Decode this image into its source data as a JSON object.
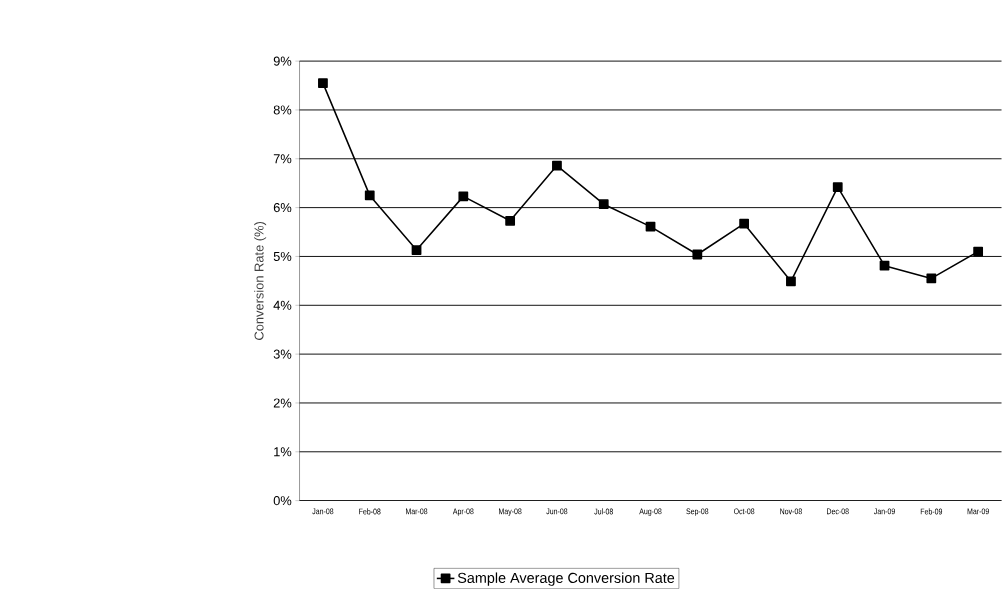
{
  "chart_data": {
    "type": "line",
    "ylabel": "Conversion Rate (%)",
    "categories": [
      "Jan-08",
      "Feb-08",
      "Mar-08",
      "Apr-08",
      "May-08",
      "Jun-08",
      "Jul-08",
      "Aug-08",
      "Sep-08",
      "Oct-08",
      "Nov-08",
      "Dec-08",
      "Jan-09",
      "Feb-09",
      "Mar-09"
    ],
    "series": [
      {
        "name": "Sample Average Conversion Rate",
        "color": "#000000",
        "values": [
          8.55,
          6.25,
          5.13,
          6.23,
          5.73,
          6.86,
          6.07,
          5.61,
          5.04,
          5.67,
          4.49,
          6.42,
          4.81,
          4.55,
          5.1
        ]
      }
    ],
    "ylim": [
      0,
      9
    ],
    "yticks": [
      {
        "value": 0,
        "label": "0%"
      },
      {
        "value": 1,
        "label": "1%"
      },
      {
        "value": 2,
        "label": "2%"
      },
      {
        "value": 3,
        "label": "3%"
      },
      {
        "value": 4,
        "label": "4%"
      },
      {
        "value": 5,
        "label": "5%"
      },
      {
        "value": 6,
        "label": "6%"
      },
      {
        "value": 7,
        "label": "7%"
      },
      {
        "value": 8,
        "label": "8%"
      },
      {
        "value": 9,
        "label": "9%"
      }
    ],
    "grid": "y",
    "legend": "bottom",
    "marker": "square",
    "line_style": "solid"
  }
}
